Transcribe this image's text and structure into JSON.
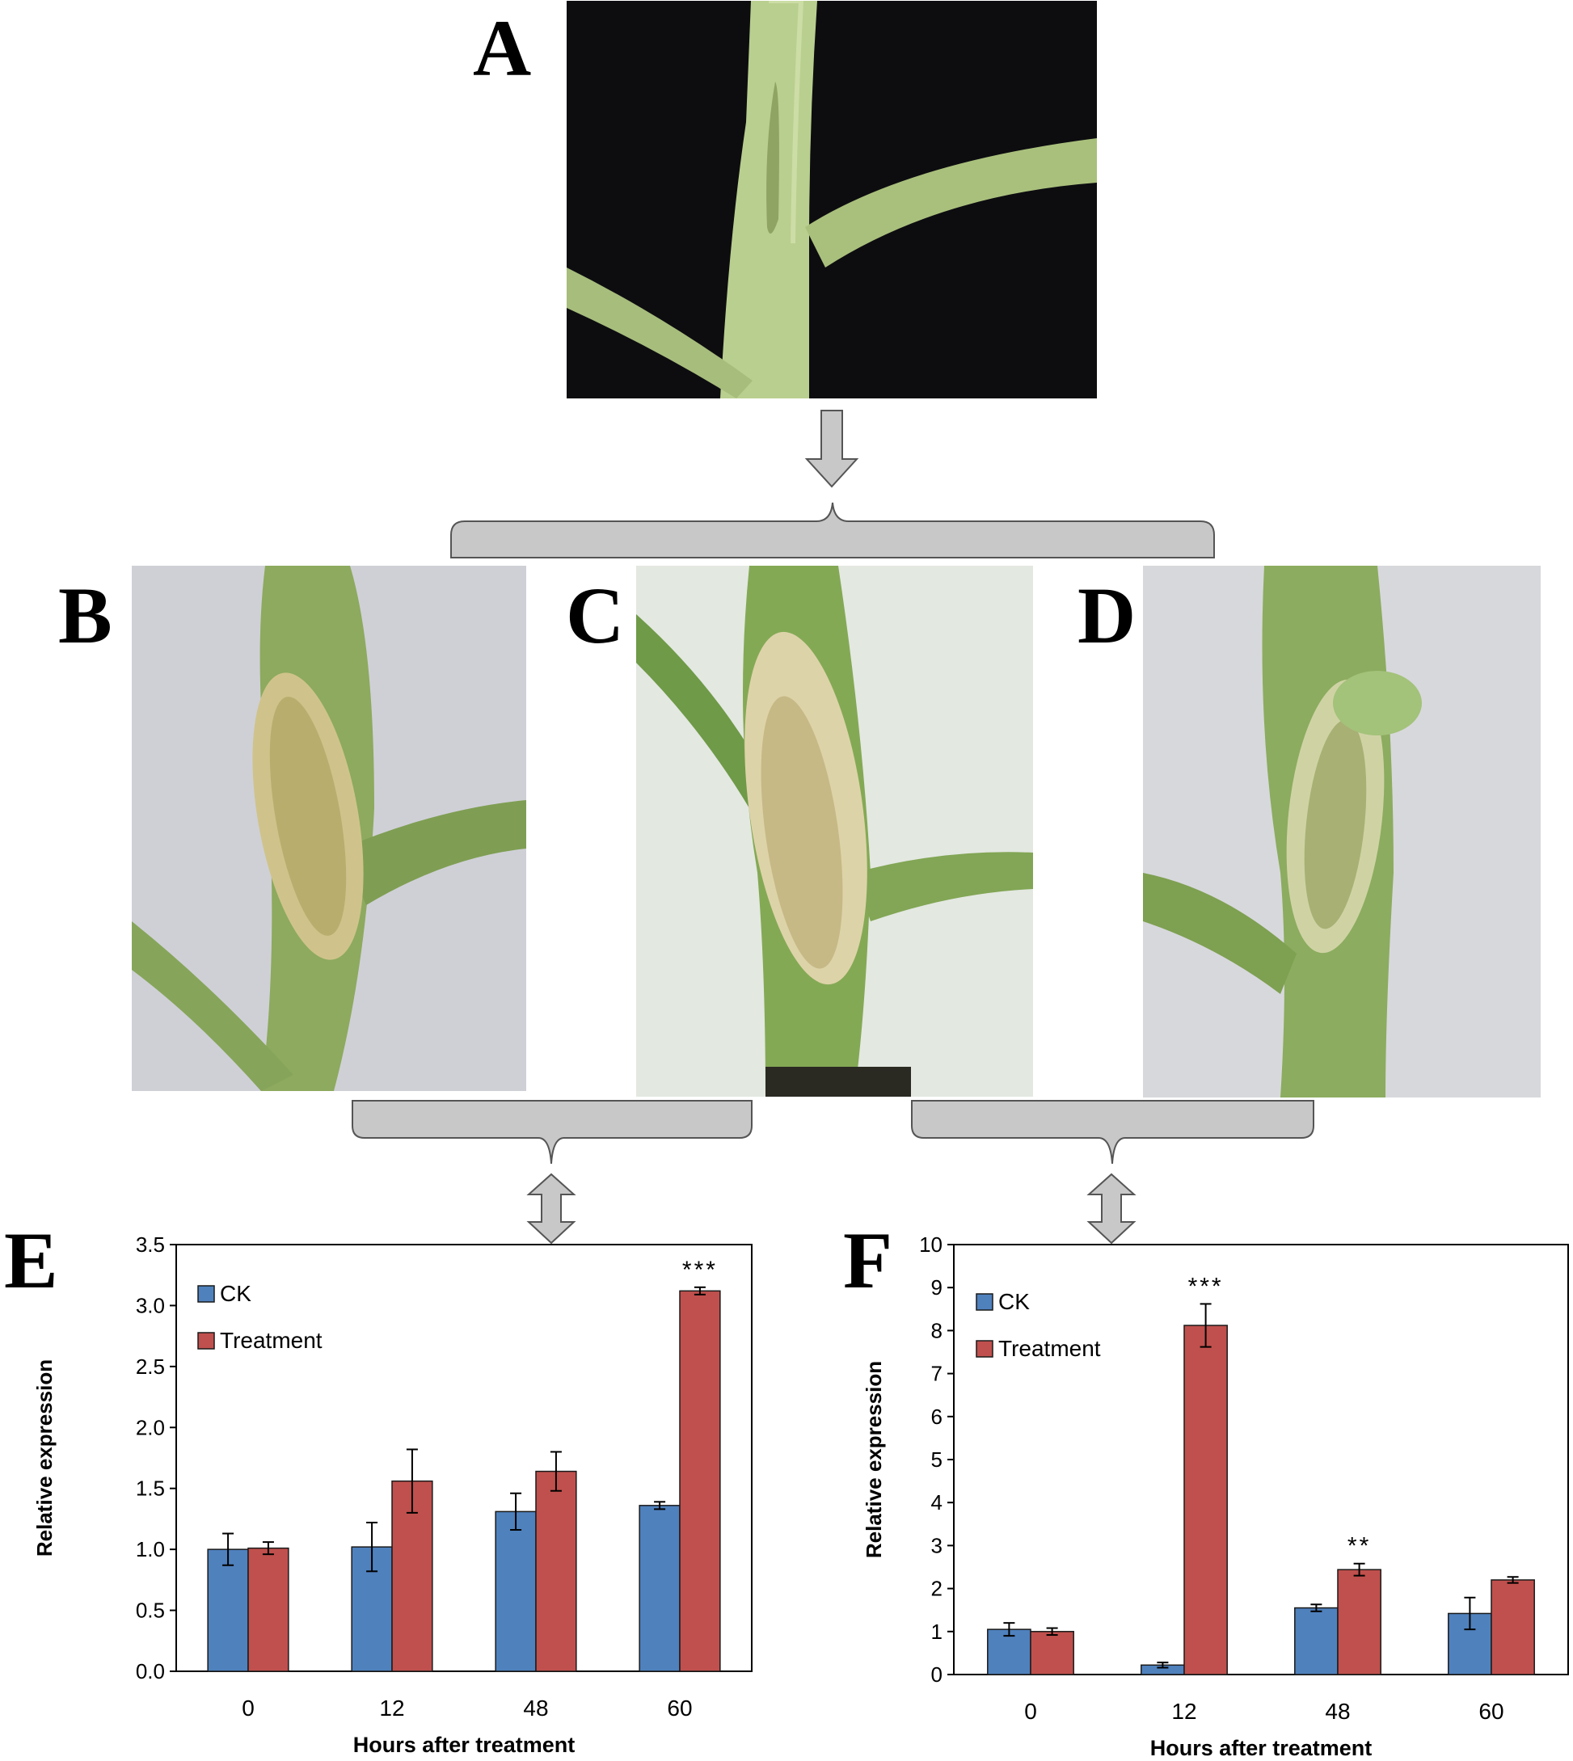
{
  "panels": {
    "A": "A",
    "B": "B",
    "C": "C",
    "D": "D",
    "E": "E",
    "F": "F"
  },
  "colors": {
    "ck": "#4F81BD",
    "treatment": "#C0504D",
    "connector_fill": "#C8C8C8",
    "connector_stroke": "#555555"
  },
  "chart_data": [
    {
      "type": "bar",
      "panel": "E",
      "categories": [
        "0",
        "12",
        "48",
        "60"
      ],
      "xlabel": "Hours after treatment",
      "ylabel": "Relative expression",
      "ylim": [
        0,
        3.5
      ],
      "yticks": [
        "0.0",
        "0.5",
        "1.0",
        "1.5",
        "2.0",
        "2.5",
        "3.0",
        "3.5"
      ],
      "legend_position": "top-left",
      "grid": false,
      "series": [
        {
          "name": "CK",
          "values": [
            1.0,
            1.02,
            1.31,
            1.36
          ],
          "errors": [
            0.13,
            0.2,
            0.15,
            0.03
          ]
        },
        {
          "name": "Treatment",
          "values": [
            1.01,
            1.56,
            1.64,
            3.12
          ],
          "errors": [
            0.05,
            0.26,
            0.16,
            0.03
          ]
        }
      ],
      "annotations": [
        {
          "category": "60",
          "series": "Treatment",
          "text": "***"
        }
      ]
    },
    {
      "type": "bar",
      "panel": "F",
      "categories": [
        "0",
        "12",
        "48",
        "60"
      ],
      "xlabel": "Hours after treatment",
      "ylabel": "Relative expression",
      "ylim": [
        0,
        10
      ],
      "yticks": [
        "0",
        "1",
        "2",
        "3",
        "4",
        "5",
        "6",
        "7",
        "8",
        "9",
        "10"
      ],
      "legend_position": "top-left",
      "grid": false,
      "series": [
        {
          "name": "CK",
          "values": [
            1.05,
            0.22,
            1.55,
            1.42
          ],
          "errors": [
            0.15,
            0.06,
            0.08,
            0.37
          ]
        },
        {
          "name": "Treatment",
          "values": [
            1.0,
            8.12,
            2.44,
            2.2
          ],
          "errors": [
            0.08,
            0.5,
            0.14,
            0.07
          ]
        }
      ],
      "annotations": [
        {
          "category": "12",
          "series": "Treatment",
          "text": "***"
        },
        {
          "category": "48",
          "series": "Treatment",
          "text": "**"
        }
      ]
    }
  ]
}
